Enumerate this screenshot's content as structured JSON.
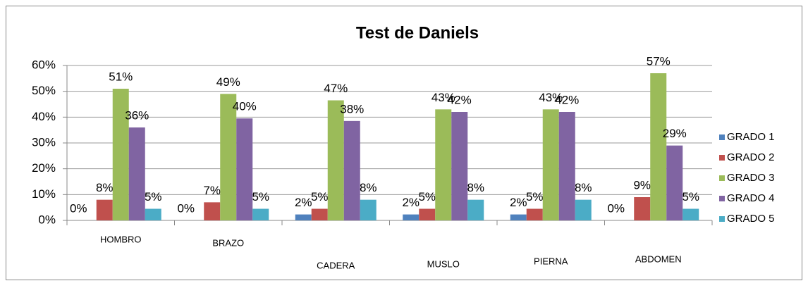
{
  "chart_data": {
    "type": "bar",
    "title": "Test de Daniels",
    "categories": [
      "HOMBRO",
      "BRAZO",
      "CADERA",
      "MUSLO",
      "PIERNA",
      "ABDOMEN"
    ],
    "series": [
      {
        "name": "GRADO 1",
        "color": "#4f81bd",
        "values": [
          0,
          0,
          2.3,
          2.3,
          2.3,
          0
        ],
        "value_labels": [
          "0%",
          "0%",
          "2%",
          "2%",
          "2%",
          "0%"
        ]
      },
      {
        "name": "GRADO 2",
        "color": "#c0504d",
        "values": [
          8,
          7,
          4.5,
          4.5,
          4.5,
          9
        ],
        "value_labels": [
          "8%",
          "7%",
          "5%",
          "5%",
          "5%",
          "9%"
        ]
      },
      {
        "name": "GRADO 3",
        "color": "#9bbb59",
        "values": [
          51,
          49,
          46.5,
          43,
          43,
          57
        ],
        "value_labels": [
          "51%",
          "49%",
          "47%",
          "43%",
          "43%",
          "57%"
        ]
      },
      {
        "name": "GRADO 4",
        "color": "#8064a2",
        "values": [
          36,
          39.5,
          38.5,
          42,
          42,
          29
        ],
        "value_labels": [
          "36%",
          "40%",
          "38%",
          "42%",
          "42%",
          "29%"
        ]
      },
      {
        "name": "GRADO 5",
        "color": "#4bacc6",
        "values": [
          4.5,
          4.5,
          8,
          8,
          8,
          4.5
        ],
        "value_labels": [
          "5%",
          "5%",
          "8%",
          "8%",
          "8%",
          "5%"
        ]
      }
    ],
    "ylim": [
      0,
      60
    ],
    "yticks": [
      {
        "value": 0,
        "label": "0%"
      },
      {
        "value": 10,
        "label": "10%"
      },
      {
        "value": 20,
        "label": "20%"
      },
      {
        "value": 30,
        "label": "30%"
      },
      {
        "value": 40,
        "label": "40%"
      },
      {
        "value": 50,
        "label": "50%"
      },
      {
        "value": 60,
        "label": "60%"
      }
    ],
    "grid": true,
    "legend": "right"
  }
}
